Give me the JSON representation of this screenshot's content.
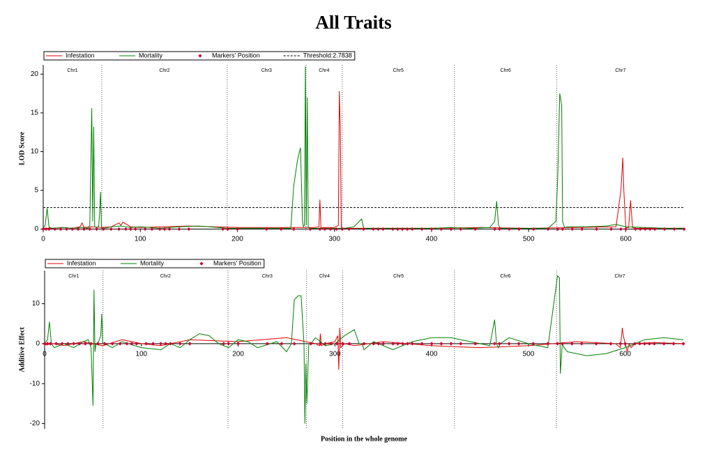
{
  "chart_data": [
    {
      "type": "line",
      "title": "All Traits",
      "y_label": "LOD Score",
      "xlim": [
        0,
        660
      ],
      "ylim": [
        -0.4,
        21.2
      ],
      "xticks": [
        0,
        100,
        200,
        300,
        400,
        500,
        600
      ],
      "yticks": [
        0,
        5,
        10,
        15,
        20
      ],
      "chr_labels": [
        "Chr1",
        "Chr2",
        "Chr3",
        "Chr4",
        "Chr5",
        "Chr6",
        "Chr7"
      ],
      "chr_boundaries": [
        60.3,
        189.5,
        270.6,
        308,
        423.5,
        529
      ],
      "threshold": 2.7838,
      "threshold_label": "Threshold:2.7838",
      "series": [
        {
          "name": "Infestation",
          "color": "#e00000",
          "style": "line",
          "x": [
            0,
            10,
            20,
            30,
            38,
            40,
            42,
            50,
            60,
            70,
            78,
            80,
            82,
            90,
            100,
            150,
            200,
            250,
            280,
            284,
            285,
            286,
            290,
            300,
            304,
            305,
            306,
            307,
            310,
            320,
            400,
            450,
            500,
            590,
            595,
            597,
            598,
            600,
            603,
            605,
            607,
            610,
            620,
            660
          ],
          "values": [
            0.1,
            0.1,
            0.2,
            0.1,
            0.3,
            0.8,
            0.2,
            0.3,
            0.2,
            0.3,
            0.8,
            0.5,
            0.9,
            0.3,
            0.2,
            0.4,
            0.2,
            0.2,
            0.2,
            0.3,
            3.8,
            0.2,
            0.2,
            0.2,
            0.5,
            17.8,
            13,
            0.2,
            0.1,
            0.1,
            0.1,
            0.2,
            0.1,
            0.3,
            5,
            9.2,
            5,
            0.2,
            0.2,
            3.7,
            0.2,
            0.1,
            0.1,
            0.1
          ]
        },
        {
          "name": "Mortality",
          "color": "#008000",
          "style": "line",
          "x": [
            0,
            2,
            4,
            6,
            10,
            20,
            30,
            40,
            46,
            48,
            50,
            51,
            52,
            53,
            55,
            57,
            58,
            59,
            60,
            61,
            63,
            70,
            80,
            90,
            100,
            120,
            140,
            160,
            180,
            190,
            200,
            220,
            240,
            250,
            255,
            258,
            262,
            265,
            267,
            268,
            269,
            270,
            271,
            272,
            273,
            275,
            280,
            300,
            310,
            320,
            328,
            330,
            332,
            340,
            360,
            380,
            400,
            420,
            440,
            460,
            465,
            467,
            469,
            471,
            473,
            480,
            500,
            520,
            528,
            530,
            532,
            534,
            535,
            537,
            540,
            560,
            580,
            590,
            600,
            620,
            640,
            660
          ],
          "values": [
            0.1,
            0.5,
            2.7,
            0.2,
            0.1,
            0.2,
            0.1,
            0.2,
            0.1,
            0.5,
            15.6,
            1,
            13.2,
            0.3,
            0.2,
            0.3,
            2,
            4.8,
            0.2,
            0.1,
            0.1,
            0.3,
            0.4,
            0.2,
            0.3,
            0.1,
            0.3,
            0.4,
            0.2,
            0.1,
            0.1,
            0.1,
            0.1,
            0.1,
            0.1,
            5.5,
            9,
            10.5,
            1,
            0.3,
            0.5,
            21,
            0.5,
            17,
            0.2,
            0.1,
            0.1,
            0.1,
            0.1,
            0.3,
            1.3,
            0.1,
            0.1,
            0.1,
            0.1,
            0.1,
            0.1,
            0.2,
            0.1,
            0.2,
            1,
            3.6,
            0.5,
            0.1,
            0.1,
            0.1,
            0.1,
            0.1,
            1,
            7,
            17.5,
            16,
            1,
            0.2,
            0.3,
            0.3,
            0.4,
            0.6,
            0.3,
            0.2,
            0.1,
            0.1
          ]
        },
        {
          "name": "Markers' Position",
          "color": "#cc0033",
          "style": "points",
          "x": [
            0,
            3,
            6,
            12,
            18,
            24,
            30,
            36,
            42,
            48,
            55,
            62,
            70,
            78,
            85,
            90,
            95,
            105,
            112,
            120,
            125,
            130,
            140,
            150,
            185,
            190,
            200,
            230,
            245,
            258,
            275,
            285,
            290,
            296,
            302,
            308,
            315,
            330,
            340,
            345,
            350,
            360,
            365,
            370,
            375,
            380,
            390,
            400,
            410,
            420,
            430,
            445,
            465,
            470,
            480,
            490,
            505,
            520,
            530,
            535,
            545,
            555,
            570,
            585,
            595,
            600,
            610,
            615,
            620,
            625,
            630,
            640,
            650,
            660
          ],
          "values": [
            0,
            0,
            0,
            0,
            0,
            0,
            0,
            0,
            0,
            0,
            0,
            0,
            0,
            0,
            0,
            0,
            0,
            0,
            0,
            0,
            0,
            0,
            0,
            0,
            0,
            0,
            0,
            0,
            0,
            0,
            0,
            0,
            0,
            0,
            0,
            0,
            0,
            0,
            0,
            0,
            0,
            0,
            0,
            0,
            0,
            0,
            0,
            0,
            0,
            0,
            0,
            0,
            0,
            0,
            0,
            0,
            0,
            0,
            0,
            0,
            0,
            0,
            0,
            0,
            0,
            0,
            0,
            0,
            0,
            0,
            0,
            0,
            0,
            0
          ]
        }
      ]
    },
    {
      "type": "line",
      "y_label": "Additive Effect",
      "x_label": "Position in the whole genome",
      "xlim": [
        0,
        660
      ],
      "ylim": [
        -21.3,
        18.3
      ],
      "xticks": [
        0,
        100,
        200,
        300,
        400,
        500,
        600
      ],
      "yticks": [
        10,
        0,
        -10,
        -20
      ],
      "chr_labels": [
        "Chr1",
        "Chr2",
        "Chr3",
        "Chr4",
        "Chr5",
        "Chr6",
        "Chr7"
      ],
      "chr_boundaries": [
        60.3,
        189.5,
        270.6,
        308,
        423.5,
        529
      ],
      "series": [
        {
          "name": "Infestation",
          "color": "#e00000",
          "style": "line",
          "x": [
            0,
            10,
            20,
            40,
            60,
            80,
            100,
            120,
            150,
            200,
            250,
            280,
            284,
            285,
            286,
            290,
            300,
            303,
            304,
            305,
            306,
            310,
            320,
            350,
            400,
            450,
            500,
            550,
            590,
            595,
            597,
            598,
            600,
            602,
            604,
            606,
            610,
            630,
            660
          ],
          "values": [
            -0.3,
            0,
            -0.5,
            0.5,
            -0.5,
            1,
            0,
            -0.5,
            1,
            0.5,
            1.5,
            0,
            -0.5,
            2.5,
            -0.5,
            0,
            0.5,
            2,
            -6.5,
            4,
            -1,
            0,
            -0.5,
            0.5,
            -0.5,
            -1,
            -0.5,
            0.5,
            0,
            -1,
            4,
            2,
            0,
            -2,
            0,
            -1,
            0,
            0.3,
            0
          ]
        },
        {
          "name": "Mortality",
          "color": "#008000",
          "style": "line",
          "x": [
            0,
            3,
            5,
            7,
            10,
            20,
            30,
            40,
            45,
            48,
            50,
            51,
            52,
            53,
            55,
            58,
            59,
            60,
            62,
            70,
            80,
            100,
            120,
            130,
            140,
            150,
            160,
            170,
            180,
            190,
            200,
            210,
            220,
            240,
            250,
            255,
            258,
            262,
            265,
            268,
            269,
            270,
            271,
            273,
            275,
            280,
            290,
            300,
            310,
            320,
            325,
            328,
            330,
            340,
            360,
            380,
            400,
            420,
            440,
            460,
            465,
            467,
            469,
            471,
            480,
            500,
            520,
            530,
            532,
            533,
            535,
            537,
            540,
            560,
            580,
            600,
            620,
            640,
            660
          ],
          "values": [
            0,
            1,
            5.5,
            0,
            -1,
            0,
            -1,
            0.5,
            1,
            -1,
            -15.5,
            13.5,
            -2,
            0,
            0,
            2,
            7.5,
            0,
            0,
            -1,
            0.5,
            -1,
            -1.5,
            0,
            -1,
            1,
            2.5,
            2,
            0,
            -1,
            1,
            0.5,
            -1,
            0.5,
            -2,
            0,
            11,
            12,
            12,
            0,
            -20,
            -5,
            -15,
            0,
            0,
            1.5,
            -0.5,
            0,
            2,
            3.5,
            0,
            0,
            -1.5,
            0.5,
            -1.5,
            0.5,
            1.5,
            1.5,
            0.5,
            -0.5,
            6,
            0,
            -1,
            0,
            1.5,
            0,
            -1,
            17,
            16.5,
            -7.5,
            0,
            -1,
            -2,
            -3,
            -2.5,
            -1,
            1,
            1.5,
            1
          ]
        },
        {
          "name": "Markers' Position",
          "color": "#cc0033",
          "style": "points",
          "x": [
            0,
            3,
            6,
            12,
            18,
            24,
            30,
            36,
            42,
            48,
            55,
            62,
            70,
            78,
            85,
            90,
            95,
            105,
            112,
            120,
            125,
            130,
            140,
            150,
            185,
            190,
            200,
            230,
            245,
            258,
            275,
            285,
            290,
            296,
            302,
            308,
            315,
            330,
            340,
            345,
            350,
            360,
            365,
            370,
            375,
            380,
            390,
            400,
            410,
            420,
            430,
            445,
            465,
            470,
            480,
            490,
            505,
            520,
            530,
            535,
            545,
            555,
            570,
            585,
            595,
            600,
            610,
            615,
            620,
            625,
            630,
            640,
            650,
            660
          ],
          "values": [
            0,
            0,
            0,
            0,
            0,
            0,
            0,
            0,
            0,
            0,
            0,
            0,
            0,
            0,
            0,
            0,
            0,
            0,
            0,
            0,
            0,
            0,
            0,
            0,
            0,
            0,
            0,
            0,
            0,
            0,
            0,
            0,
            0,
            0,
            0,
            0,
            0,
            0,
            0,
            0,
            0,
            0,
            0,
            0,
            0,
            0,
            0,
            0,
            0,
            0,
            0,
            0,
            0,
            0,
            0,
            0,
            0,
            0,
            0,
            0,
            0,
            0,
            0,
            0,
            0,
            0,
            0,
            0,
            0,
            0,
            0,
            0,
            0,
            0
          ]
        }
      ]
    }
  ]
}
